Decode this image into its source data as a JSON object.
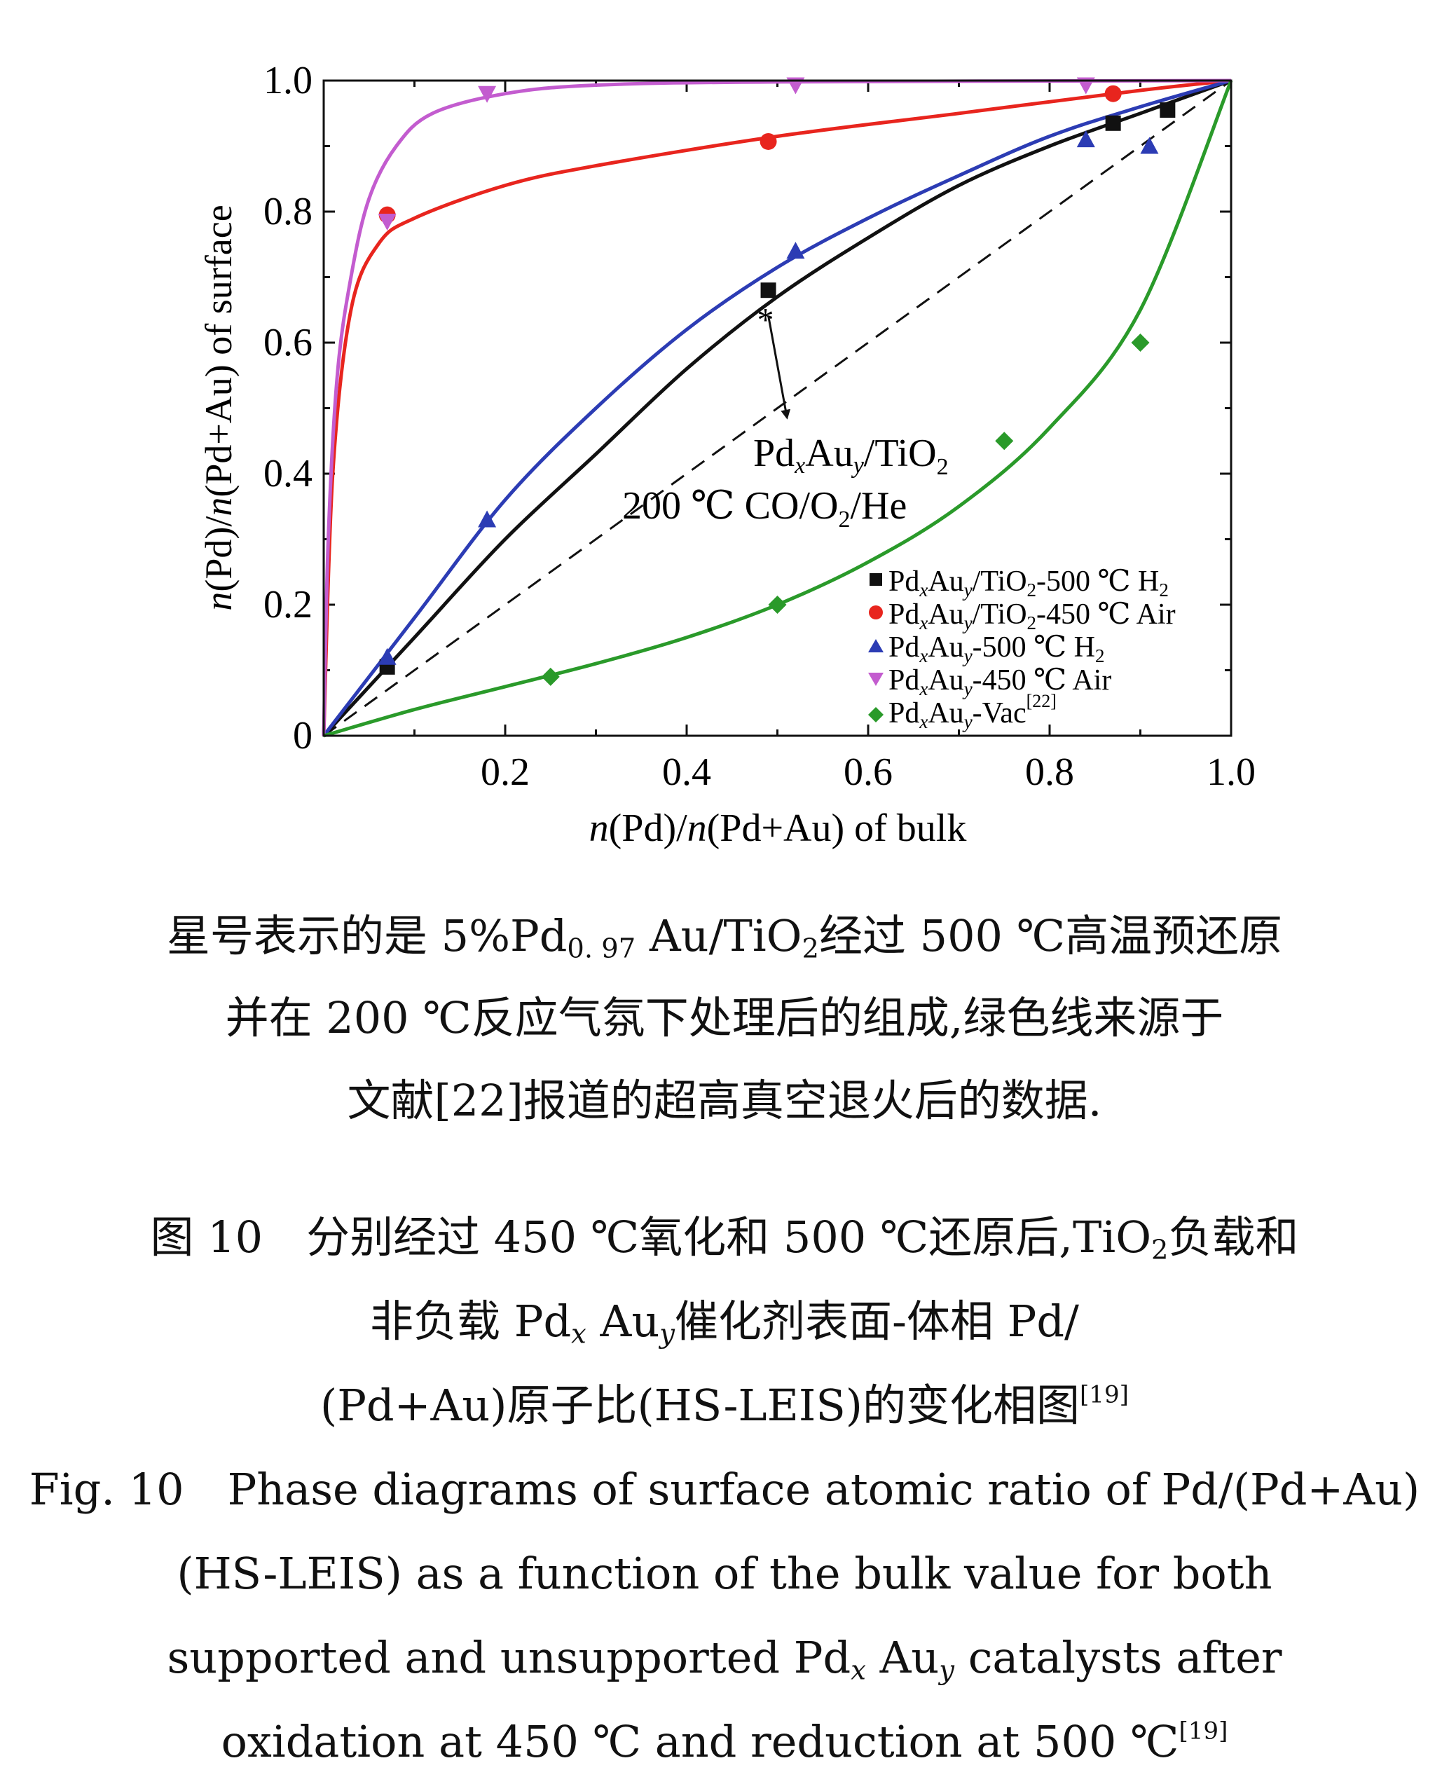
{
  "chart_data": {
    "type": "line",
    "xlabel": {
      "n1": "n",
      "mid": "(Pd)/",
      "n2": "n",
      "rest": "(Pd+Au) of bulk"
    },
    "ylabel": {
      "n1": "n",
      "mid": "(Pd)/",
      "n2": "n",
      "rest": "(Pd+Au) of surface"
    },
    "xlim": [
      0,
      1.0
    ],
    "ylim": [
      0,
      1.0
    ],
    "x_ticks": [
      {
        "v": 0.2,
        "t": "0.2"
      },
      {
        "v": 0.4,
        "t": "0.4"
      },
      {
        "v": 0.6,
        "t": "0.6"
      },
      {
        "v": 0.8,
        "t": "0.8"
      },
      {
        "v": 1.0,
        "t": "1.0"
      }
    ],
    "y_ticks": [
      {
        "v": 0,
        "t": "0"
      },
      {
        "v": 0.2,
        "t": "0.2"
      },
      {
        "v": 0.4,
        "t": "0.4"
      },
      {
        "v": 0.6,
        "t": "0.6"
      },
      {
        "v": 0.8,
        "t": "0.8"
      },
      {
        "v": 1.0,
        "t": "1.0"
      }
    ],
    "diagonal_reference": [
      [
        0,
        0
      ],
      [
        1,
        1
      ]
    ],
    "series": [
      {
        "key": "h2_tio2",
        "marker": "square",
        "color": "#111111",
        "legend": {
          "a": "Pd",
          "b": "Au",
          "c": "/TiO",
          "d": "-500 ℃ H"
        },
        "points": [
          [
            0.07,
            0.105
          ],
          [
            0.49,
            0.68
          ],
          [
            0.87,
            0.935
          ],
          [
            0.93,
            0.955
          ]
        ],
        "curve": [
          [
            0,
            0
          ],
          [
            0.1,
            0.15
          ],
          [
            0.2,
            0.3
          ],
          [
            0.3,
            0.43
          ],
          [
            0.4,
            0.56
          ],
          [
            0.5,
            0.67
          ],
          [
            0.6,
            0.76
          ],
          [
            0.7,
            0.84
          ],
          [
            0.8,
            0.9
          ],
          [
            0.9,
            0.95
          ],
          [
            1.0,
            1.0
          ]
        ]
      },
      {
        "key": "air_tio2",
        "marker": "circle",
        "color": "#e8251e",
        "legend": {
          "a": "Pd",
          "b": "Au",
          "c": "/TiO",
          "d": "-450 ℃ Air"
        },
        "points": [
          [
            0.07,
            0.795
          ],
          [
            0.49,
            0.907
          ],
          [
            0.87,
            0.98
          ]
        ],
        "curve": [
          [
            0,
            0
          ],
          [
            0.01,
            0.4
          ],
          [
            0.03,
            0.65
          ],
          [
            0.06,
            0.75
          ],
          [
            0.1,
            0.79
          ],
          [
            0.2,
            0.84
          ],
          [
            0.3,
            0.87
          ],
          [
            0.5,
            0.915
          ],
          [
            0.7,
            0.95
          ],
          [
            0.9,
            0.985
          ],
          [
            1.0,
            1.0
          ]
        ]
      },
      {
        "key": "h2_unsup",
        "marker": "triangle-up",
        "color": "#2c3cb4",
        "legend": {
          "a": "Pd",
          "b": "Au",
          "c": "",
          "d": "-500 ℃ H"
        },
        "points": [
          [
            0.07,
            0.12
          ],
          [
            0.18,
            0.33
          ],
          [
            0.52,
            0.74
          ],
          [
            0.84,
            0.91
          ],
          [
            0.91,
            0.9
          ]
        ],
        "curve": [
          [
            0,
            0
          ],
          [
            0.1,
            0.18
          ],
          [
            0.2,
            0.36
          ],
          [
            0.3,
            0.5
          ],
          [
            0.4,
            0.62
          ],
          [
            0.5,
            0.715
          ],
          [
            0.6,
            0.79
          ],
          [
            0.7,
            0.855
          ],
          [
            0.8,
            0.915
          ],
          [
            0.9,
            0.96
          ],
          [
            1.0,
            1.0
          ]
        ]
      },
      {
        "key": "air_unsup",
        "marker": "triangle-down",
        "color": "#c35ccf",
        "legend": {
          "a": "Pd",
          "b": "Au",
          "c": "",
          "d": "-450 ℃ Air"
        },
        "points": [
          [
            0.07,
            0.785
          ],
          [
            0.18,
            0.98
          ],
          [
            0.52,
            0.993
          ],
          [
            0.84,
            0.993
          ]
        ],
        "curve": [
          [
            0,
            0
          ],
          [
            0.005,
            0.3
          ],
          [
            0.015,
            0.55
          ],
          [
            0.03,
            0.7
          ],
          [
            0.05,
            0.82
          ],
          [
            0.08,
            0.9
          ],
          [
            0.12,
            0.95
          ],
          [
            0.2,
            0.98
          ],
          [
            0.3,
            0.993
          ],
          [
            0.5,
            0.998
          ],
          [
            1.0,
            1.0
          ]
        ]
      },
      {
        "key": "vac",
        "marker": "diamond",
        "color": "#2a9a2a",
        "legend": {
          "a": "Pd",
          "b": "Au",
          "c": "",
          "d": "-Vac"
        },
        "legend_ref": "[22]",
        "points": [
          [
            0.25,
            0.09
          ],
          [
            0.5,
            0.2
          ],
          [
            0.75,
            0.45
          ],
          [
            0.9,
            0.6
          ]
        ],
        "curve": [
          [
            0,
            0
          ],
          [
            0.1,
            0.04
          ],
          [
            0.2,
            0.075
          ],
          [
            0.3,
            0.11
          ],
          [
            0.4,
            0.15
          ],
          [
            0.5,
            0.2
          ],
          [
            0.6,
            0.265
          ],
          [
            0.7,
            0.35
          ],
          [
            0.8,
            0.47
          ],
          [
            0.9,
            0.65
          ],
          [
            1.0,
            1.0
          ]
        ]
      }
    ],
    "annotation": {
      "star_point": [
        0.49,
        0.65
      ],
      "star_glyph": "*",
      "arrow_to": [
        0.51,
        0.49
      ],
      "line1": {
        "a": "Pd",
        "b": "Au",
        "c": "/TiO"
      },
      "line2": {
        "a": "200 ℃ CO/O",
        "b": "/He"
      }
    }
  },
  "caption": {
    "star_note": {
      "line1a": "星号表示的是 5%Pd",
      "line1b": "0. 97",
      "line1c": " Au/TiO",
      "line1d": "经过 500 ℃高温预还原",
      "line2": "并在 200 ℃反应气氛下处理后的组成,绿色线来源于",
      "line3": "文献[22]报道的超高真空退火后的数据."
    },
    "cn": {
      "line1a": "图 10　分别经过 450 ℃氧化和 500 ℃还原后,TiO",
      "line1b": "负载和",
      "line2a": "非负载 Pd",
      "line2b": " Au",
      "line2c": "催化剂表面-体相 Pd/",
      "line3a": "(Pd+Au)原子比(HS-LEIS)的变化相图",
      "line3ref": "[19]"
    },
    "en": {
      "line1": "Fig. 10　Phase diagrams of surface atomic ratio of Pd/(Pd+Au)",
      "line2": "(HS-LEIS) as a function of the bulk value for both",
      "line3a": "supported and unsupported Pd",
      "line3b": " Au",
      "line3c": " catalysts after",
      "line4a": "oxidation at 450 ℃ and reduction at 500 ℃",
      "line4ref": "[19]"
    }
  }
}
